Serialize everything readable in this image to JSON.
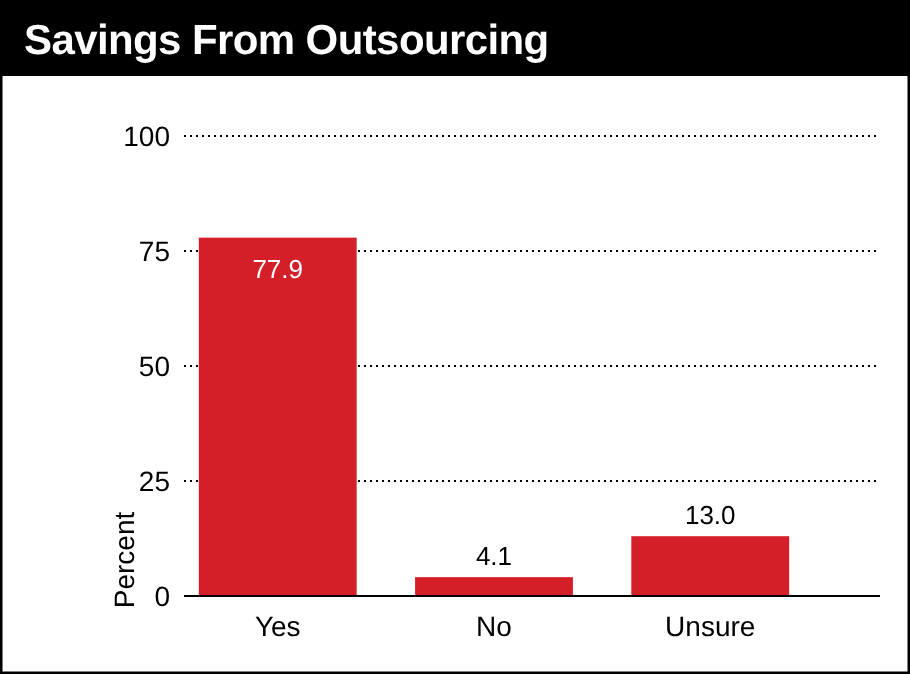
{
  "chart_data": {
    "type": "bar",
    "title": "Savings From Outsourcing",
    "ylabel": "Percent",
    "categories": [
      "Yes",
      "No",
      "Unsure"
    ],
    "values": [
      77.9,
      4.1,
      13.0
    ],
    "value_labels": [
      "77.9",
      "4.1",
      "13.0"
    ],
    "color": "#d41f29",
    "ylim": [
      0,
      100
    ],
    "yticks": [
      0,
      25,
      50,
      75,
      100
    ],
    "grid": "y"
  }
}
